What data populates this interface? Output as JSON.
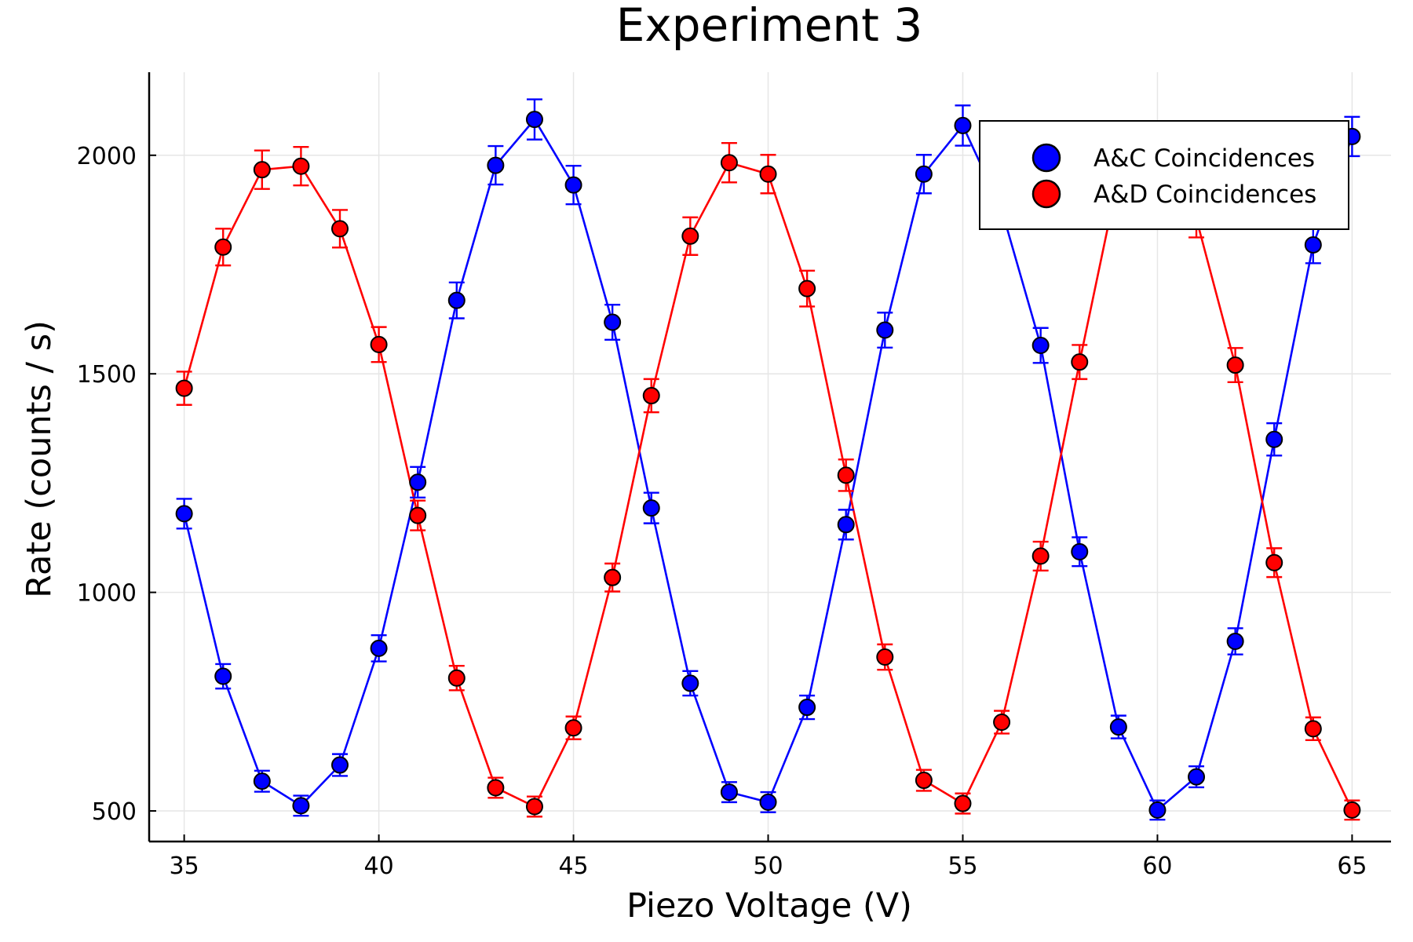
{
  "chart_data": {
    "type": "scatter",
    "title": "Experiment 3",
    "xlabel": "Piezo Voltage (V)",
    "ylabel": "Rate (counts / s)",
    "xlim": [
      34.1,
      66.0
    ],
    "ylim": [
      430,
      2190
    ],
    "x_ticks": [
      35,
      40,
      45,
      50,
      55,
      60,
      65
    ],
    "y_ticks": [
      500,
      1000,
      1500,
      2000
    ],
    "grid": true,
    "legend_position": "top-right",
    "markers": "circle with black outline, connecting lines, error bars",
    "x": [
      35,
      36,
      37,
      38,
      39,
      40,
      41,
      42,
      43,
      44,
      45,
      46,
      47,
      48,
      49,
      50,
      51,
      52,
      53,
      54,
      55,
      56,
      57,
      58,
      59,
      60,
      61,
      62,
      63,
      64,
      65
    ],
    "series": [
      {
        "name": "A&C Coincidences",
        "color": "#0000ff",
        "values": [
          1180,
          808,
          568,
          512,
          605,
          872,
          1252,
          1668,
          1977,
          2082,
          1932,
          1618,
          1193,
          792,
          543,
          520,
          737,
          1155,
          1600,
          1957,
          2068,
          1875,
          1565,
          1093,
          692,
          502,
          578,
          888,
          1350,
          1795,
          2043
        ],
        "errors": [
          34,
          28,
          24,
          23,
          25,
          30,
          35,
          41,
          44,
          46,
          44,
          40,
          35,
          28,
          23,
          23,
          27,
          34,
          40,
          44,
          46,
          43,
          40,
          33,
          26,
          22,
          24,
          30,
          37,
          42,
          45
        ]
      },
      {
        "name": "A&D Coincidences",
        "color": "#ff0000",
        "values": [
          1467,
          1790,
          1967,
          1975,
          1832,
          1567,
          1176,
          804,
          553,
          510,
          690,
          1034,
          1450,
          1815,
          1983,
          1957,
          1695,
          1268,
          852,
          570,
          517,
          703,
          1083,
          1527,
          1952,
          2007,
          1855,
          1520,
          1068,
          688,
          502
        ],
        "errors": [
          38,
          42,
          44,
          44,
          43,
          40,
          34,
          28,
          23,
          23,
          26,
          32,
          38,
          43,
          45,
          44,
          41,
          36,
          29,
          24,
          23,
          26,
          33,
          39,
          44,
          45,
          43,
          39,
          33,
          26,
          22
        ]
      }
    ]
  }
}
